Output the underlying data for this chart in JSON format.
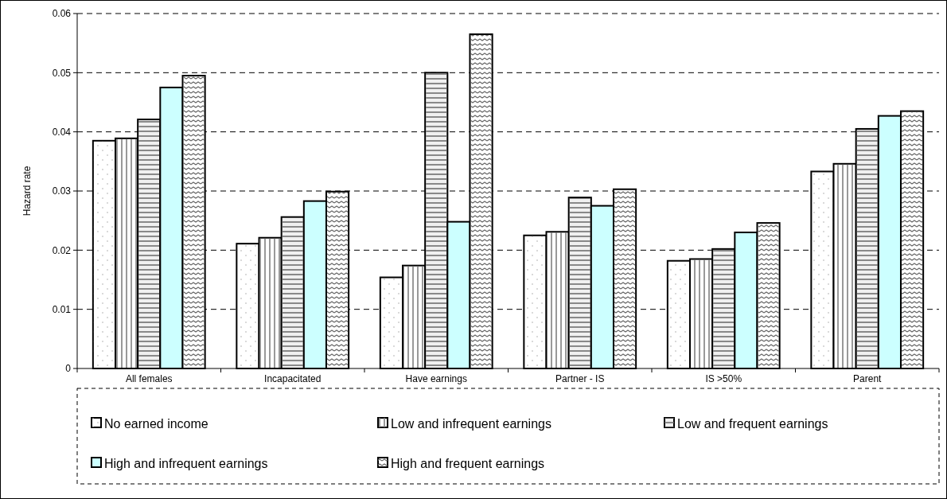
{
  "chart_data": {
    "type": "bar",
    "ylabel": "Hazard rate",
    "categories": [
      "All females",
      "Incapacitated",
      "Have earnings",
      "Partner - IS",
      "IS >50%",
      "Parent"
    ],
    "series": [
      {
        "name": "No earned income",
        "color": "#ffffff",
        "values": [
          0.0385,
          0.0211,
          0.0154,
          0.0225,
          0.0182,
          0.0333
        ]
      },
      {
        "name": "Low and infrequent earnings",
        "color": "#ffffff",
        "values": [
          0.0389,
          0.0221,
          0.0174,
          0.0231,
          0.0185,
          0.0346
        ]
      },
      {
        "name": "Low and frequent earnings",
        "color": "#f0f0f0",
        "values": [
          0.0421,
          0.0256,
          0.05,
          0.0289,
          0.0202,
          0.0405
        ]
      },
      {
        "name": "High and infrequent earnings",
        "color": "#ccffff",
        "values": [
          0.0475,
          0.0283,
          0.0248,
          0.0275,
          0.023,
          0.0427
        ]
      },
      {
        "name": "High and frequent earnings",
        "color": "#ffffff",
        "values": [
          0.0495,
          0.0299,
          0.0565,
          0.0303,
          0.0246,
          0.0435
        ]
      }
    ],
    "ylim": [
      0,
      0.06
    ],
    "yticks": [
      0,
      0.01,
      0.02,
      0.03,
      0.04,
      0.05,
      0.06
    ],
    "grid": "y",
    "legend": "bottom"
  }
}
